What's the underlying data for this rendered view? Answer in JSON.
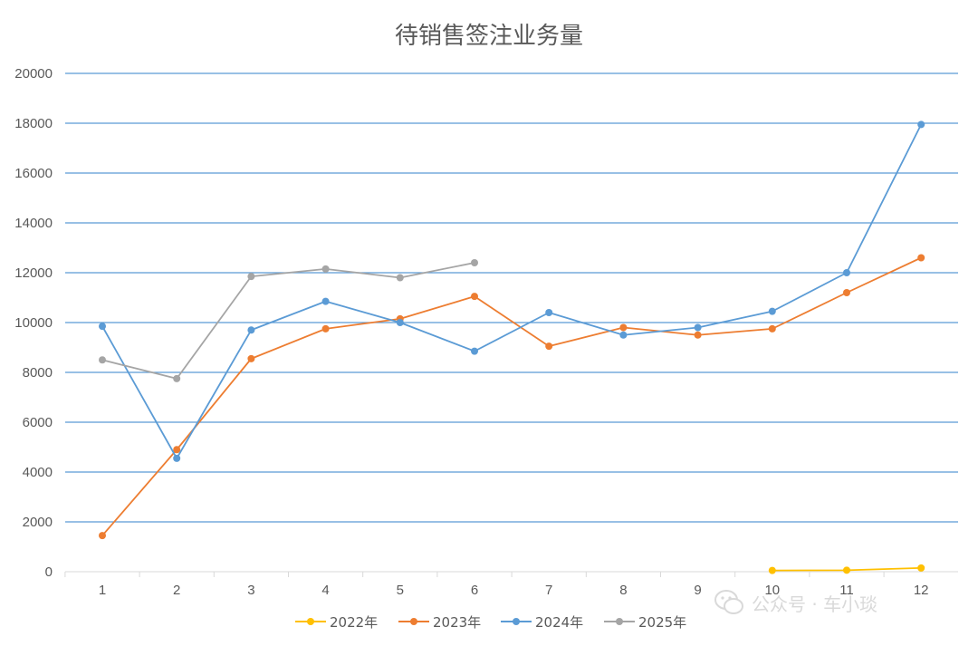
{
  "chart_data": {
    "type": "line",
    "title": "待销售签注业务量",
    "xlabel": "",
    "ylabel": "",
    "categories": [
      "1",
      "2",
      "3",
      "4",
      "5",
      "6",
      "7",
      "8",
      "9",
      "10",
      "11",
      "12"
    ],
    "ylim": [
      0,
      20000
    ],
    "yticks": [
      "0",
      "2000",
      "4000",
      "6000",
      "8000",
      "10000",
      "12000",
      "14000",
      "16000",
      "18000",
      "20000"
    ],
    "grid": true,
    "legend_position": "bottom",
    "series": [
      {
        "name": "2022年",
        "color": "#FFC000",
        "values": [
          null,
          null,
          null,
          null,
          null,
          null,
          null,
          null,
          null,
          50,
          60,
          150
        ]
      },
      {
        "name": "2023年",
        "color": "#ED7D31",
        "values": [
          1450,
          4900,
          8550,
          9750,
          10150,
          11050,
          9050,
          9800,
          9500,
          9750,
          11200,
          12600
        ]
      },
      {
        "name": "2024年",
        "color": "#5B9BD5",
        "values": [
          9850,
          4550,
          9700,
          10850,
          10000,
          8850,
          10400,
          9500,
          9800,
          10450,
          12000,
          17950
        ]
      },
      {
        "name": "2025年",
        "color": "#A5A5A5",
        "values": [
          8500,
          7750,
          11850,
          12150,
          11800,
          12400,
          null,
          null,
          null,
          null,
          null,
          null
        ]
      }
    ]
  },
  "watermark": {
    "text": "公众号 · 车小琰",
    "icon": "wechat-icon"
  }
}
